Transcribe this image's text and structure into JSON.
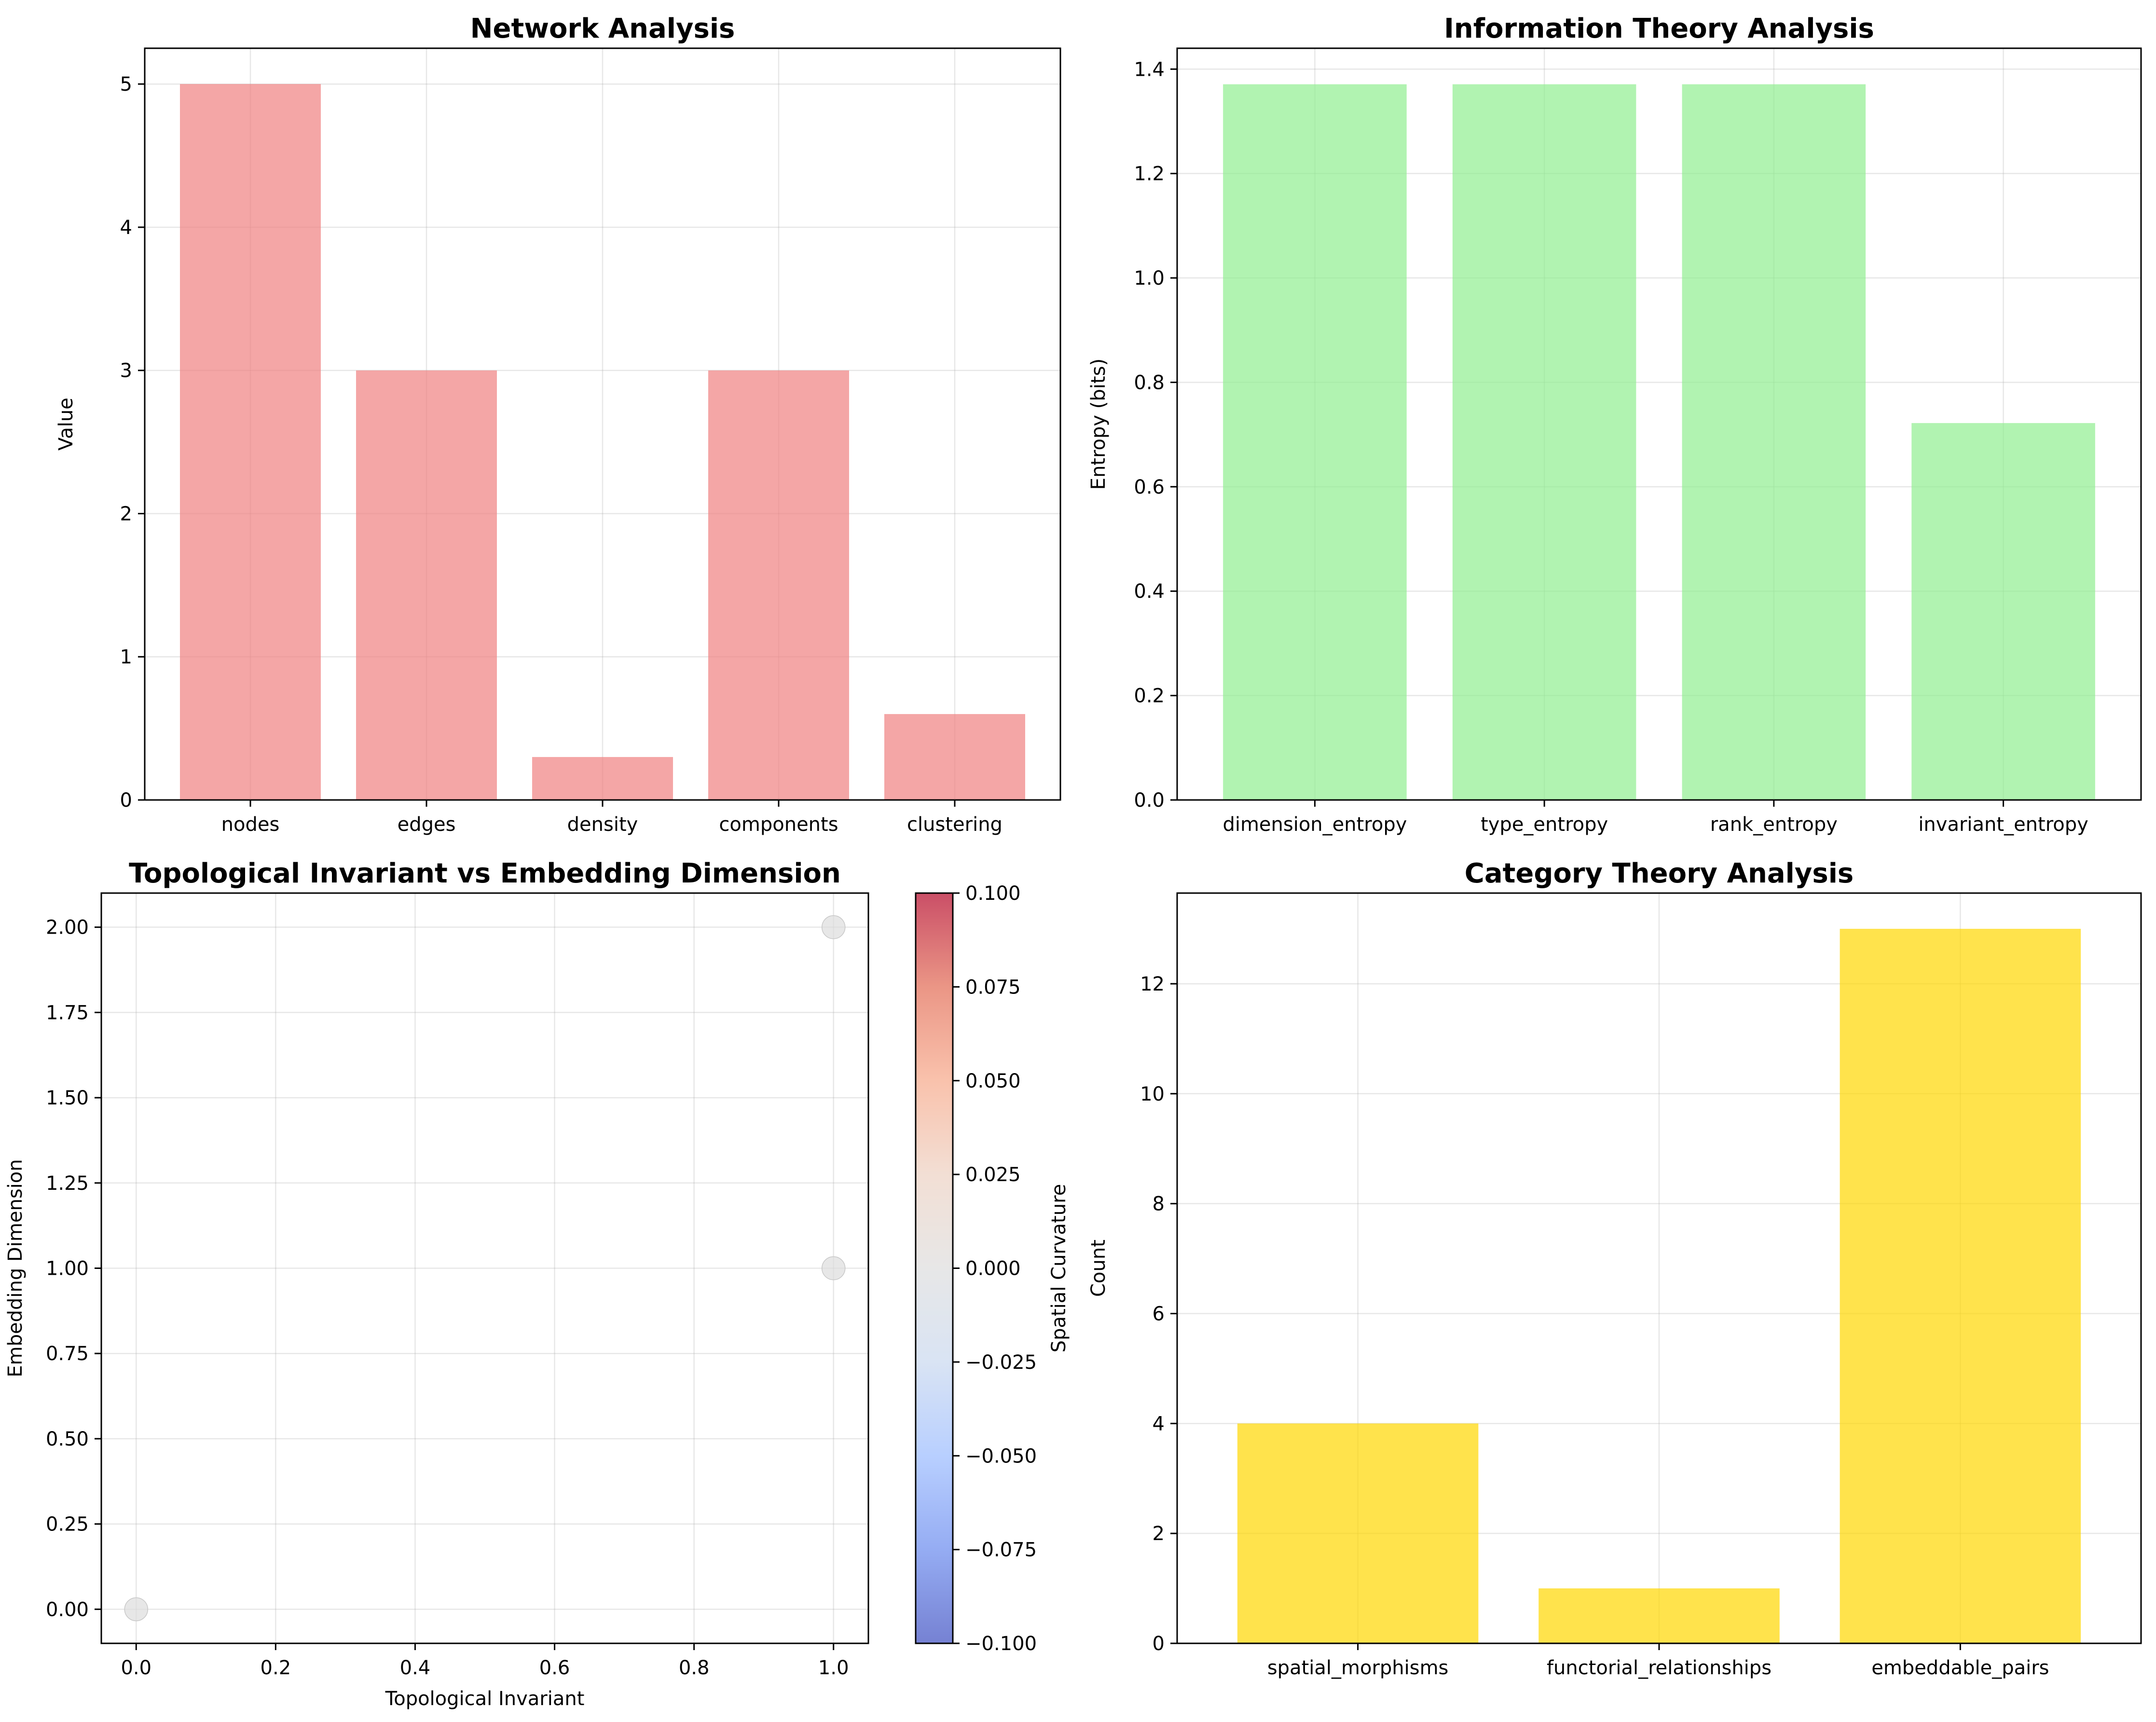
{
  "chart_data": [
    {
      "type": "bar",
      "title": "Network Analysis",
      "xlabel": "",
      "ylabel": "Value",
      "categories": [
        "nodes",
        "edges",
        "density",
        "components",
        "clustering"
      ],
      "values": [
        5,
        3,
        0.3,
        3,
        0.6
      ],
      "ylim": [
        0,
        5.25
      ],
      "yticks": [
        0,
        1,
        2,
        3,
        4,
        5
      ],
      "ytick_labels": [
        "0",
        "1",
        "2",
        "3",
        "4",
        "5"
      ],
      "color": "#f08080",
      "grid": true
    },
    {
      "type": "bar",
      "title": "Information Theory Analysis",
      "xlabel": "",
      "ylabel": "Entropy (bits)",
      "categories": [
        "dimension_entropy",
        "type_entropy",
        "rank_entropy",
        "invariant_entropy"
      ],
      "values": [
        1.371,
        1.371,
        1.371,
        0.722
      ],
      "ylim": [
        0,
        1.44
      ],
      "yticks": [
        0,
        0.2,
        0.4,
        0.6,
        0.8,
        1.0,
        1.2,
        1.4
      ],
      "ytick_labels": [
        "0.0",
        "0.2",
        "0.4",
        "0.6",
        "0.8",
        "1.0",
        "1.2",
        "1.4"
      ],
      "color": "#90ee90",
      "grid": true
    },
    {
      "type": "scatter",
      "title": "Topological Invariant vs Embedding Dimension",
      "xlabel": "Topological Invariant",
      "ylabel": "Embedding Dimension",
      "points": [
        {
          "x": 0,
          "y": 0
        },
        {
          "x": 1,
          "y": 1
        },
        {
          "x": 1,
          "y": 2
        }
      ],
      "xlim": [
        -0.05,
        1.05
      ],
      "ylim": [
        -0.1,
        2.1
      ],
      "xticks": [
        0,
        0.2,
        0.4,
        0.6,
        0.8,
        1.0
      ],
      "xtick_labels": [
        "0.0",
        "0.2",
        "0.4",
        "0.6",
        "0.8",
        "1.0"
      ],
      "yticks": [
        0,
        0.25,
        0.5,
        0.75,
        1.0,
        1.25,
        1.5,
        1.75,
        2.0
      ],
      "ytick_labels": [
        "0.00",
        "0.25",
        "0.50",
        "0.75",
        "1.00",
        "1.25",
        "1.50",
        "1.75",
        "2.00"
      ],
      "point_color": "#dddddd",
      "grid": true,
      "colorbar": {
        "label": "Spatial Curvature",
        "range": [
          -0.1,
          0.1
        ],
        "ticks": [
          -0.1,
          -0.075,
          -0.05,
          -0.025,
          0,
          0.025,
          0.05,
          0.075,
          0.1
        ],
        "tick_labels": [
          "−0.100",
          "−0.075",
          "−0.050",
          "−0.025",
          "0.000",
          "0.025",
          "0.050",
          "0.075",
          "0.100"
        ],
        "colormap": "coolwarm",
        "colors": [
          "#3b4cc0",
          "#6889ee",
          "#9abbff",
          "#c9d8ef",
          "#dddddd",
          "#edd1c2",
          "#f7a889",
          "#e26952",
          "#b40426"
        ]
      }
    },
    {
      "type": "bar",
      "title": "Category Theory Analysis",
      "xlabel": "",
      "ylabel": "Count",
      "categories": [
        "spatial_morphisms",
        "functorial_relationships",
        "embeddable_pairs"
      ],
      "values": [
        4,
        1,
        13
      ],
      "ylim": [
        0,
        13.65
      ],
      "yticks": [
        0,
        2,
        4,
        6,
        8,
        10,
        12
      ],
      "ytick_labels": [
        "0",
        "2",
        "4",
        "6",
        "8",
        "10",
        "12"
      ],
      "color": "#ffd700",
      "grid": true
    }
  ]
}
